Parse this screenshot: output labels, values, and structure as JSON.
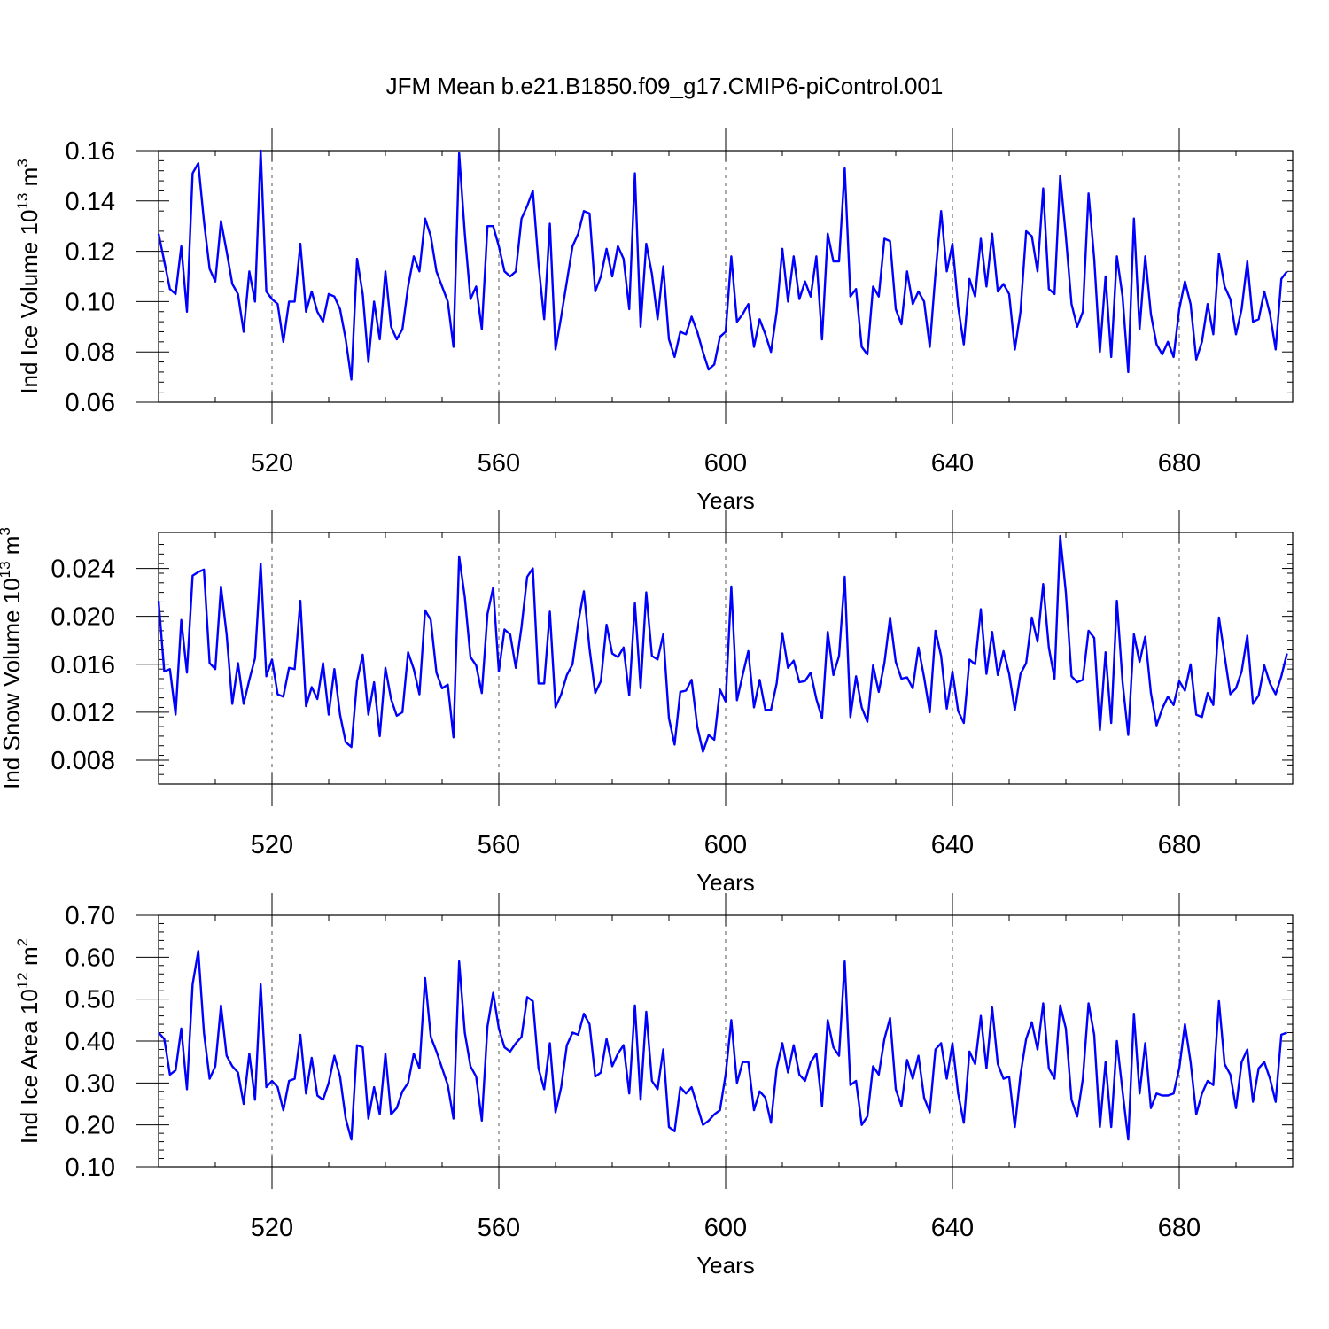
{
  "chart_data": [
    {
      "type": "line",
      "title": "JFM Mean b.e21.B1850.f09_g17.CMIP6-piControl.001",
      "ylabel": {
        "base": "Ind Ice Volume 10",
        "exp": "13",
        "unit": " m",
        "unit_exp": "3"
      },
      "xlabel": "Years",
      "xlim": [
        500,
        700
      ],
      "ylim": [
        0.06,
        0.16
      ],
      "xticks": [
        520,
        560,
        600,
        640,
        680
      ],
      "xtick_labels": [
        "520",
        "560",
        "600",
        "640",
        "680"
      ],
      "yticks": [
        0.06,
        0.08,
        0.1,
        0.12,
        0.14,
        0.16
      ],
      "ytick_labels": [
        "0.06",
        "0.08",
        "0.10",
        "0.12",
        "0.14",
        "0.16"
      ],
      "grid": "vertical dashed at major x ticks",
      "color": "#0000ff",
      "x_start": 500,
      "x_step": 1,
      "values": [
        0.127,
        0.116,
        0.105,
        0.103,
        0.122,
        0.096,
        0.151,
        0.155,
        0.132,
        0.113,
        0.108,
        0.132,
        0.12,
        0.107,
        0.103,
        0.088,
        0.112,
        0.1,
        0.16,
        0.104,
        0.101,
        0.099,
        0.084,
        0.1,
        0.1,
        0.123,
        0.096,
        0.104,
        0.096,
        0.092,
        0.103,
        0.102,
        0.097,
        0.085,
        0.069,
        0.117,
        0.103,
        0.076,
        0.1,
        0.085,
        0.112,
        0.09,
        0.085,
        0.089,
        0.106,
        0.118,
        0.112,
        0.133,
        0.126,
        0.112,
        0.106,
        0.1,
        0.082,
        0.159,
        0.127,
        0.101,
        0.106,
        0.089,
        0.13,
        0.13,
        0.122,
        0.112,
        0.11,
        0.112,
        0.133,
        0.138,
        0.144,
        0.115,
        0.093,
        0.131,
        0.081,
        0.094,
        0.108,
        0.122,
        0.127,
        0.136,
        0.135,
        0.104,
        0.11,
        0.121,
        0.11,
        0.122,
        0.117,
        0.097,
        0.151,
        0.09,
        0.123,
        0.111,
        0.093,
        0.114,
        0.085,
        0.078,
        0.088,
        0.087,
        0.094,
        0.088,
        0.08,
        0.073,
        0.075,
        0.086,
        0.088,
        0.118,
        0.092,
        0.095,
        0.099,
        0.082,
        0.093,
        0.087,
        0.08,
        0.096,
        0.121,
        0.1,
        0.118,
        0.101,
        0.108,
        0.102,
        0.118,
        0.085,
        0.127,
        0.116,
        0.116,
        0.153,
        0.102,
        0.105,
        0.082,
        0.079,
        0.106,
        0.102,
        0.125,
        0.124,
        0.097,
        0.091,
        0.112,
        0.099,
        0.104,
        0.1,
        0.082,
        0.111,
        0.136,
        0.112,
        0.123,
        0.098,
        0.083,
        0.109,
        0.102,
        0.125,
        0.106,
        0.127,
        0.104,
        0.107,
        0.103,
        0.081,
        0.096,
        0.128,
        0.126,
        0.112,
        0.145,
        0.105,
        0.103,
        0.15,
        0.126,
        0.099,
        0.09,
        0.096,
        0.143,
        0.117,
        0.08,
        0.11,
        0.078,
        0.118,
        0.102,
        0.072,
        0.133,
        0.089,
        0.118,
        0.095,
        0.083,
        0.079,
        0.084,
        0.078,
        0.097,
        0.108,
        0.099,
        0.077,
        0.084,
        0.099,
        0.087,
        0.119,
        0.106,
        0.101,
        0.087,
        0.097,
        0.116,
        0.092,
        0.093,
        0.104,
        0.095,
        0.081,
        0.109,
        0.112
      ]
    },
    {
      "type": "line",
      "ylabel": {
        "base": "Ind Snow Volume 10",
        "exp": "13",
        "unit": " m",
        "unit_exp": "3"
      },
      "xlabel": "Years",
      "xlim": [
        500,
        700
      ],
      "ylim": [
        0.006,
        0.027
      ],
      "xticks": [
        520,
        560,
        600,
        640,
        680
      ],
      "xtick_labels": [
        "520",
        "560",
        "600",
        "640",
        "680"
      ],
      "yticks": [
        0.008,
        0.012,
        0.016,
        0.02,
        0.024
      ],
      "ytick_labels": [
        "0.008",
        "0.012",
        "0.016",
        "0.020",
        "0.024"
      ],
      "grid": "vertical dashed at major x ticks",
      "color": "#0000ff",
      "x_start": 500,
      "x_step": 1,
      "values": [
        0.0213,
        0.0154,
        0.0156,
        0.0118,
        0.0197,
        0.0153,
        0.0234,
        0.0237,
        0.0239,
        0.0161,
        0.0156,
        0.0225,
        0.0185,
        0.0127,
        0.0161,
        0.0127,
        0.0147,
        0.0165,
        0.0244,
        0.015,
        0.0164,
        0.0135,
        0.0133,
        0.0157,
        0.0156,
        0.0213,
        0.0125,
        0.0141,
        0.0131,
        0.0161,
        0.0118,
        0.0156,
        0.0118,
        0.0095,
        0.0091,
        0.0146,
        0.0168,
        0.0118,
        0.0145,
        0.01,
        0.0157,
        0.0131,
        0.0117,
        0.012,
        0.017,
        0.0156,
        0.0135,
        0.0205,
        0.0197,
        0.0153,
        0.014,
        0.0143,
        0.0099,
        0.025,
        0.0216,
        0.0166,
        0.0159,
        0.0136,
        0.0202,
        0.0224,
        0.0154,
        0.0189,
        0.0185,
        0.0157,
        0.0191,
        0.0233,
        0.024,
        0.0144,
        0.0144,
        0.0204,
        0.0124,
        0.0135,
        0.0151,
        0.016,
        0.0195,
        0.0221,
        0.0173,
        0.0136,
        0.0146,
        0.0193,
        0.0169,
        0.0166,
        0.0174,
        0.0134,
        0.0211,
        0.014,
        0.022,
        0.0167,
        0.0164,
        0.0185,
        0.0115,
        0.0093,
        0.0137,
        0.0138,
        0.0147,
        0.0108,
        0.0087,
        0.0101,
        0.0097,
        0.0139,
        0.0129,
        0.0225,
        0.013,
        0.0151,
        0.0171,
        0.0124,
        0.0147,
        0.0122,
        0.0122,
        0.0144,
        0.0186,
        0.0157,
        0.0163,
        0.0145,
        0.0146,
        0.0153,
        0.0131,
        0.0115,
        0.0187,
        0.0151,
        0.0167,
        0.0233,
        0.0116,
        0.015,
        0.0124,
        0.0112,
        0.0159,
        0.0137,
        0.0161,
        0.0199,
        0.0162,
        0.0148,
        0.0149,
        0.014,
        0.0174,
        0.0149,
        0.012,
        0.0188,
        0.0167,
        0.0123,
        0.0154,
        0.0121,
        0.0111,
        0.0164,
        0.016,
        0.0206,
        0.0152,
        0.0187,
        0.0151,
        0.0171,
        0.0152,
        0.0122,
        0.0152,
        0.0161,
        0.0199,
        0.0179,
        0.0227,
        0.0174,
        0.0148,
        0.0267,
        0.022,
        0.015,
        0.0145,
        0.0147,
        0.0188,
        0.0182,
        0.0105,
        0.017,
        0.0111,
        0.0213,
        0.0145,
        0.0101,
        0.0185,
        0.0162,
        0.0183,
        0.0136,
        0.0109,
        0.0123,
        0.0133,
        0.0126,
        0.0146,
        0.0138,
        0.016,
        0.0118,
        0.0116,
        0.0136,
        0.0126,
        0.0199,
        0.0167,
        0.0135,
        0.014,
        0.0154,
        0.0184,
        0.0127,
        0.0134,
        0.0159,
        0.0144,
        0.0135,
        0.015,
        0.0169
      ]
    },
    {
      "type": "line",
      "ylabel": {
        "base": "Ind Ice Area 10",
        "exp": "12",
        "unit": " m",
        "unit_exp": "2"
      },
      "xlabel": "Years",
      "xlim": [
        500,
        700
      ],
      "ylim": [
        0.1,
        0.7
      ],
      "xticks": [
        520,
        560,
        600,
        640,
        680
      ],
      "xtick_labels": [
        "520",
        "560",
        "600",
        "640",
        "680"
      ],
      "yticks": [
        0.1,
        0.2,
        0.3,
        0.4,
        0.5,
        0.6,
        0.7
      ],
      "ytick_labels": [
        "0.10",
        "0.20",
        "0.30",
        "0.40",
        "0.50",
        "0.60",
        "0.70"
      ],
      "grid": "vertical dashed at major x ticks",
      "color": "#0000ff",
      "x_start": 500,
      "x_step": 1,
      "values": [
        0.42,
        0.405,
        0.32,
        0.33,
        0.43,
        0.285,
        0.535,
        0.615,
        0.42,
        0.31,
        0.34,
        0.485,
        0.365,
        0.34,
        0.325,
        0.25,
        0.37,
        0.26,
        0.535,
        0.29,
        0.305,
        0.29,
        0.235,
        0.305,
        0.31,
        0.415,
        0.275,
        0.36,
        0.27,
        0.26,
        0.3,
        0.365,
        0.315,
        0.215,
        0.165,
        0.39,
        0.385,
        0.215,
        0.29,
        0.225,
        0.37,
        0.225,
        0.24,
        0.28,
        0.3,
        0.37,
        0.335,
        0.55,
        0.41,
        0.375,
        0.335,
        0.295,
        0.215,
        0.59,
        0.42,
        0.34,
        0.315,
        0.21,
        0.435,
        0.515,
        0.43,
        0.385,
        0.375,
        0.395,
        0.41,
        0.505,
        0.495,
        0.335,
        0.285,
        0.395,
        0.23,
        0.29,
        0.39,
        0.42,
        0.415,
        0.465,
        0.44,
        0.315,
        0.325,
        0.405,
        0.34,
        0.37,
        0.39,
        0.275,
        0.485,
        0.26,
        0.47,
        0.305,
        0.285,
        0.38,
        0.195,
        0.185,
        0.29,
        0.275,
        0.29,
        0.245,
        0.2,
        0.21,
        0.225,
        0.235,
        0.32,
        0.45,
        0.3,
        0.35,
        0.35,
        0.235,
        0.28,
        0.265,
        0.205,
        0.335,
        0.395,
        0.325,
        0.39,
        0.32,
        0.305,
        0.35,
        0.37,
        0.245,
        0.45,
        0.385,
        0.365,
        0.59,
        0.295,
        0.305,
        0.2,
        0.22,
        0.34,
        0.32,
        0.405,
        0.455,
        0.285,
        0.245,
        0.355,
        0.31,
        0.365,
        0.265,
        0.23,
        0.38,
        0.395,
        0.31,
        0.395,
        0.275,
        0.205,
        0.375,
        0.345,
        0.46,
        0.335,
        0.48,
        0.345,
        0.31,
        0.315,
        0.195,
        0.32,
        0.405,
        0.445,
        0.38,
        0.49,
        0.335,
        0.31,
        0.485,
        0.43,
        0.26,
        0.22,
        0.31,
        0.49,
        0.415,
        0.195,
        0.35,
        0.195,
        0.4,
        0.28,
        0.165,
        0.465,
        0.275,
        0.395,
        0.24,
        0.275,
        0.27,
        0.27,
        0.275,
        0.335,
        0.44,
        0.35,
        0.225,
        0.275,
        0.305,
        0.295,
        0.495,
        0.345,
        0.32,
        0.24,
        0.35,
        0.38,
        0.255,
        0.335,
        0.35,
        0.31,
        0.255,
        0.415,
        0.42
      ]
    }
  ]
}
